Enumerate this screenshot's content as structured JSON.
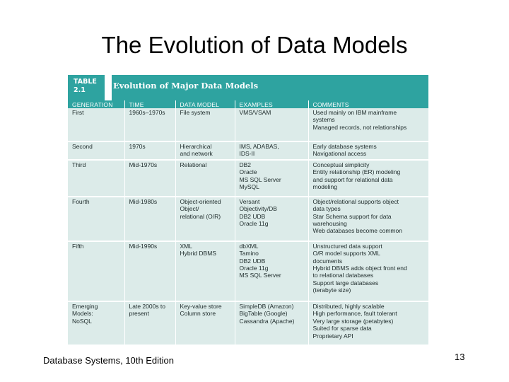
{
  "slide": {
    "title": "The Evolution of Data Models",
    "footer": "Database Systems, 10th Edition",
    "page_number": "13"
  },
  "table": {
    "number_line1": "TABLE",
    "number_line2": "2.1",
    "caption": "Evolution of Major Data Models",
    "columns": [
      "GENERATION",
      "TIME",
      "DATA MODEL",
      "EXAMPLES",
      "COMMENTS"
    ],
    "rows": [
      {
        "generation": [
          "First"
        ],
        "time": [
          "1960s–1970s"
        ],
        "model": [
          "File system"
        ],
        "examples": [
          "VMS/VSAM"
        ],
        "comments": [
          "Used mainly on IBM mainframe",
          "systems",
          "Managed records, not relationships"
        ]
      },
      {
        "generation": [
          "Second"
        ],
        "time": [
          "1970s"
        ],
        "model": [
          "Hierarchical",
          "and network"
        ],
        "examples": [
          "IMS, ADABAS,",
          "IDS-II"
        ],
        "comments": [
          "Early database systems",
          "Navigational access"
        ]
      },
      {
        "generation": [
          "Third"
        ],
        "time": [
          "Mid-1970s"
        ],
        "model": [
          "Relational"
        ],
        "examples": [
          "DB2",
          "Oracle",
          "MS SQL Server",
          "MySQL"
        ],
        "comments": [
          "Conceptual simplicity",
          "Entity relationship (ER) modeling",
          "and support for relational data",
          "modeling"
        ]
      },
      {
        "generation": [
          "Fourth"
        ],
        "time": [
          "Mid-1980s"
        ],
        "model": [
          "Object-oriented",
          "Object/",
          "relational (O/R)"
        ],
        "examples": [
          "Versant",
          "Objectivity/DB",
          "DB2 UDB",
          "Oracle 11g"
        ],
        "comments": [
          "Object/relational supports object",
          "data types",
          "Star Schema support for data",
          "warehousing",
          "Web databases become common"
        ]
      },
      {
        "generation": [
          "Fifth"
        ],
        "time": [
          "Mid-1990s"
        ],
        "model": [
          "XML",
          "Hybrid DBMS"
        ],
        "examples": [
          "dbXML",
          "Tamino",
          "DB2 UDB",
          "Oracle 11g",
          "MS SQL Server"
        ],
        "comments": [
          "Unstructured data support",
          "O/R model supports XML",
          "documents",
          "Hybrid DBMS adds object front end",
          "to relational databases",
          "Support large databases",
          "(terabyte size)"
        ]
      },
      {
        "generation": [
          "Emerging",
          "Models:",
          "NoSQL"
        ],
        "time": [
          "Late 2000s to",
          "present"
        ],
        "model": [
          "Key-value store",
          "Column store"
        ],
        "examples": [
          "SimpleDB (Amazon)",
          "BigTable (Google)",
          "Cassandra (Apache)"
        ],
        "comments": [
          "Distributed, highly scalable",
          "High performance, fault tolerant",
          "Very large storage (petabytes)",
          "Suited for sparse data",
          "Proprietary API"
        ]
      }
    ]
  },
  "colors": {
    "header_teal": "#2ea3a0",
    "row_background": "#dcebe9",
    "text": "#1d2a2a"
  }
}
